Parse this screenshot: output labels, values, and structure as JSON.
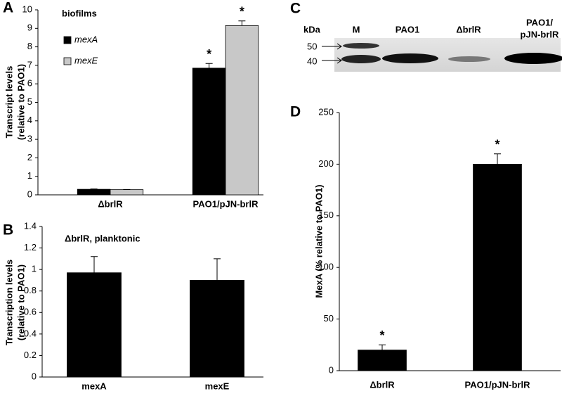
{
  "chart_data": [
    {
      "panel": "A",
      "type": "bar",
      "annotation": "biofilms",
      "categories": [
        "ΔbrlR",
        "PAO1/pJN-brlR"
      ],
      "series": [
        {
          "name": "mexA",
          "color": "#000000",
          "values": [
            0.3,
            6.85
          ],
          "errors": [
            0.02,
            0.25
          ],
          "significance": [
            null,
            "*"
          ]
        },
        {
          "name": "mexE",
          "color": "#c8c8c8",
          "values": [
            0.28,
            9.15
          ],
          "errors": [
            0.01,
            0.25
          ],
          "significance": [
            null,
            "*"
          ]
        }
      ],
      "ylim": [
        0,
        10
      ],
      "yticks": [
        0,
        1,
        2,
        3,
        4,
        5,
        6,
        7,
        8,
        9,
        10
      ],
      "ylabel": [
        "Transcript levels",
        "(relative to PAO1)"
      ],
      "legend": "upper-left"
    },
    {
      "panel": "B",
      "type": "bar",
      "annotation": "ΔbrlR, planktonic",
      "categories": [
        "mexA",
        "mexE"
      ],
      "series": [
        {
          "color": "#000000",
          "values": [
            0.97,
            0.9
          ],
          "errors": [
            0.15,
            0.2
          ]
        }
      ],
      "ylim": [
        0,
        1.4
      ],
      "yticks": [
        0,
        0.2,
        0.4,
        0.6,
        0.8,
        1,
        1.2,
        1.4
      ],
      "ylabel": [
        "Transcription levels",
        "(relative to PAO1)"
      ]
    },
    {
      "panel": "D",
      "type": "bar",
      "categories": [
        "ΔbrlR",
        "PAO1/pJN-brlR"
      ],
      "series": [
        {
          "color": "#000000",
          "values": [
            20,
            200
          ],
          "errors": [
            5,
            10
          ],
          "significance": [
            "*",
            "*"
          ]
        }
      ],
      "ylim": [
        0,
        250
      ],
      "yticks": [
        0,
        50,
        100,
        150,
        200,
        250
      ],
      "ylabel": [
        "MexA (% relative to PAO1)"
      ]
    }
  ],
  "blot": {
    "panel": "C",
    "unit": "kDa",
    "lanes": [
      "M",
      "PAO1",
      "ΔbrlR",
      [
        "PAO1/",
        "pJN-brlR"
      ]
    ],
    "markers": [
      50,
      40
    ]
  }
}
